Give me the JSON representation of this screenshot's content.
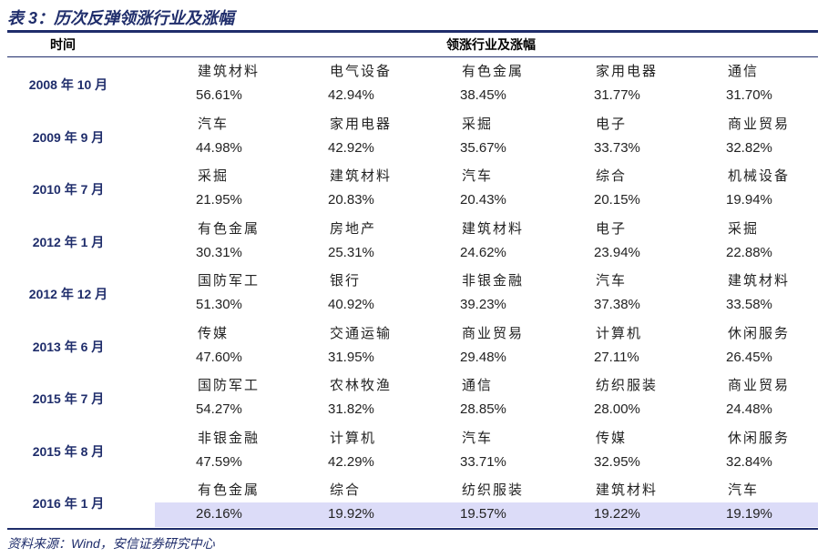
{
  "header": {
    "title": "表 3：历次反弹领涨行业及涨幅"
  },
  "table": {
    "columns": [
      "时间",
      "领涨行业及涨幅"
    ],
    "rows": [
      {
        "date": "2008 年 10 月",
        "leaders": [
          {
            "industry": "建筑材料",
            "gain": "56.61%"
          },
          {
            "industry": "电气设备",
            "gain": "42.94%"
          },
          {
            "industry": "有色金属",
            "gain": "38.45%"
          },
          {
            "industry": "家用电器",
            "gain": "31.77%"
          },
          {
            "industry": "通信",
            "gain": "31.70%"
          }
        ]
      },
      {
        "date": "2009 年 9 月",
        "leaders": [
          {
            "industry": "汽车",
            "gain": "44.98%"
          },
          {
            "industry": "家用电器",
            "gain": "42.92%"
          },
          {
            "industry": "采掘",
            "gain": "35.67%"
          },
          {
            "industry": "电子",
            "gain": "33.73%"
          },
          {
            "industry": "商业贸易",
            "gain": "32.82%"
          }
        ]
      },
      {
        "date": "2010 年 7 月",
        "leaders": [
          {
            "industry": "采掘",
            "gain": "21.95%"
          },
          {
            "industry": "建筑材料",
            "gain": "20.83%"
          },
          {
            "industry": "汽车",
            "gain": "20.43%"
          },
          {
            "industry": "综合",
            "gain": "20.15%"
          },
          {
            "industry": "机械设备",
            "gain": "19.94%"
          }
        ]
      },
      {
        "date": "2012 年 1 月",
        "leaders": [
          {
            "industry": "有色金属",
            "gain": "30.31%"
          },
          {
            "industry": "房地产",
            "gain": "25.31%"
          },
          {
            "industry": "建筑材料",
            "gain": "24.62%"
          },
          {
            "industry": "电子",
            "gain": "23.94%"
          },
          {
            "industry": "采掘",
            "gain": "22.88%"
          }
        ]
      },
      {
        "date": "2012 年 12 月",
        "leaders": [
          {
            "industry": "国防军工",
            "gain": "51.30%"
          },
          {
            "industry": "银行",
            "gain": "40.92%"
          },
          {
            "industry": "非银金融",
            "gain": "39.23%"
          },
          {
            "industry": "汽车",
            "gain": "37.38%"
          },
          {
            "industry": "建筑材料",
            "gain": "33.58%"
          }
        ]
      },
      {
        "date": "2013 年 6 月",
        "leaders": [
          {
            "industry": "传媒",
            "gain": "47.60%"
          },
          {
            "industry": "交通运输",
            "gain": "31.95%"
          },
          {
            "industry": "商业贸易",
            "gain": "29.48%"
          },
          {
            "industry": "计算机",
            "gain": "27.11%"
          },
          {
            "industry": "休闲服务",
            "gain": "26.45%"
          }
        ]
      },
      {
        "date": "2015 年 7 月",
        "leaders": [
          {
            "industry": "国防军工",
            "gain": "54.27%"
          },
          {
            "industry": "农林牧渔",
            "gain": "31.82%"
          },
          {
            "industry": "通信",
            "gain": "28.85%"
          },
          {
            "industry": "纺织服装",
            "gain": "28.00%"
          },
          {
            "industry": "商业贸易",
            "gain": "24.48%"
          }
        ]
      },
      {
        "date": "2015 年 8 月",
        "leaders": [
          {
            "industry": "非银金融",
            "gain": "47.59%"
          },
          {
            "industry": "计算机",
            "gain": "42.29%"
          },
          {
            "industry": "汽车",
            "gain": "33.71%"
          },
          {
            "industry": "传媒",
            "gain": "32.95%"
          },
          {
            "industry": "休闲服务",
            "gain": "32.84%"
          }
        ]
      },
      {
        "date": "2016 年 1 月",
        "leaders": [
          {
            "industry": "有色金属",
            "gain": "26.16%"
          },
          {
            "industry": "综合",
            "gain": "19.92%"
          },
          {
            "industry": "纺织服装",
            "gain": "19.57%"
          },
          {
            "industry": "建筑材料",
            "gain": "19.22%"
          },
          {
            "industry": "汽车",
            "gain": "19.19%"
          }
        ]
      }
    ]
  },
  "footer": {
    "source": "资料来源：Wind，安信证券研究中心"
  }
}
